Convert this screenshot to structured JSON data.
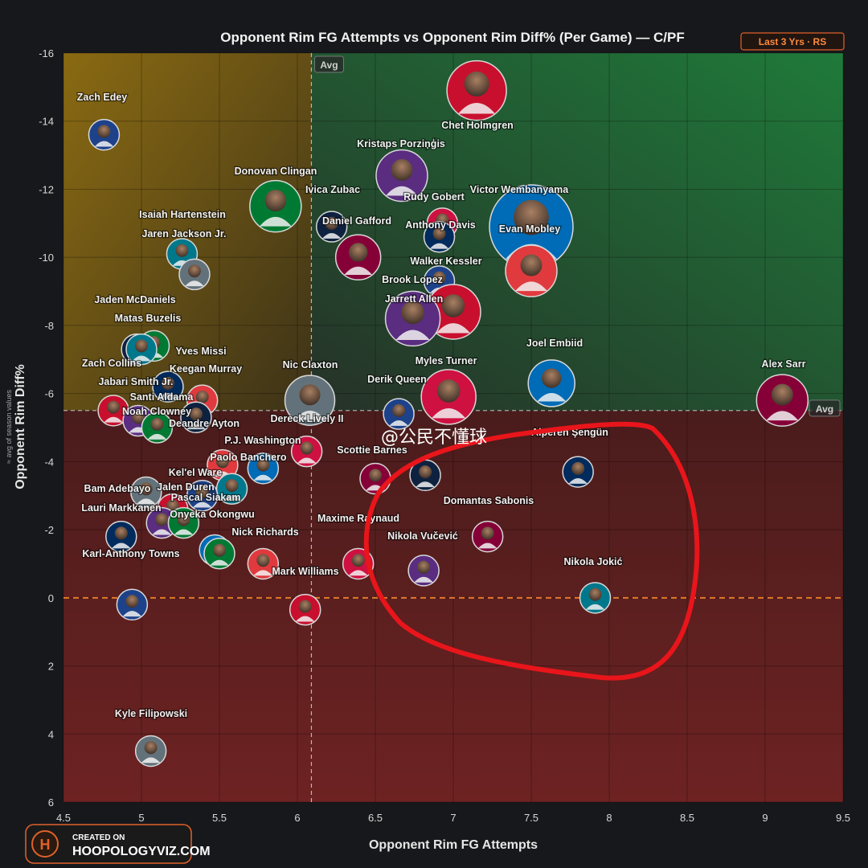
{
  "title": "Opponent Rim FG Attempts vs Opponent Rim Diff% (Per Game) — C/PF",
  "badge": "Last 3 Yrs · RS",
  "xlabel": "Opponent Rim FG Attempts",
  "ylabel": "Opponent Rim Diff%",
  "ylabel_sub": "≈ avg of season values",
  "avg_label": "Avg",
  "watermark": "@公民不懂球",
  "logo": {
    "line1": "CREATED ON",
    "line2": "HOOPOLOGYVIZ.COM",
    "mark": "H"
  },
  "colors": {
    "quad_top_left": "#8a6a12",
    "quad_top_right": "#1f7a3a",
    "quad_bottom": "#6e2222",
    "zero_line": "#e07a2a",
    "avg_line": "#b8b8b8",
    "circle_highlight": "#e8151b",
    "badge_border": "#e0622a"
  },
  "chart_data": {
    "type": "scatter",
    "xlim": [
      4.5,
      9.5
    ],
    "ylim": [
      6,
      -16
    ],
    "y_inverted": true,
    "x_ticks": [
      "4.5",
      "5",
      "5.5",
      "6",
      "6.5",
      "7",
      "7.5",
      "8",
      "8.5",
      "9",
      "9.5"
    ],
    "y_ticks": [
      "-16",
      "-14",
      "-12",
      "-10",
      "-8",
      "-6",
      "-4",
      "-2",
      "0",
      "2",
      "4",
      "6"
    ],
    "avg_x": 6.09,
    "avg_y": -5.5,
    "grid": true,
    "annotation": "red hand-drawn circle around Domantas Sabonis, Nikola Vučević, Nikola Jokić",
    "points": [
      {
        "name": "Zach Edey",
        "x": 4.76,
        "y": -13.6
      },
      {
        "name": "Chet Holmgren",
        "x": 7.15,
        "y": -14.9
      },
      {
        "name": "Kristaps Porziņģis",
        "x": 6.67,
        "y": -12.4
      },
      {
        "name": "Donovan Clingan",
        "x": 5.86,
        "y": -11.5
      },
      {
        "name": "Ivica Zubac",
        "x": 6.22,
        "y": -10.9
      },
      {
        "name": "Rudy Gobert",
        "x": 6.93,
        "y": -11.0
      },
      {
        "name": "Victor Wembanyama",
        "x": 7.5,
        "y": -10.9
      },
      {
        "name": "Daniel Gafford",
        "x": 6.39,
        "y": -10.0
      },
      {
        "name": "Anthony Davis",
        "x": 6.91,
        "y": -10.6
      },
      {
        "name": "Evan Mobley",
        "x": 7.5,
        "y": -9.6
      },
      {
        "name": "Isaiah Hartenstein",
        "x": 5.26,
        "y": -10.1
      },
      {
        "name": "Jaren Jackson Jr.",
        "x": 5.34,
        "y": -9.5
      },
      {
        "name": "Walker Kessler",
        "x": 6.91,
        "y": -9.3
      },
      {
        "name": "Brook Lopez",
        "x": 7.0,
        "y": -8.4
      },
      {
        "name": "Jarrett Allen",
        "x": 6.74,
        "y": -8.2
      },
      {
        "name": "Jaden McDaniels",
        "x": 5.08,
        "y": -7.4
      },
      {
        "name": "Matas Buzelis",
        "x": 4.97,
        "y": -7.3
      },
      {
        "name": "Myles Turner",
        "x": 6.97,
        "y": -5.9
      },
      {
        "name": "Joel Embiid",
        "x": 7.63,
        "y": -6.3
      },
      {
        "name": "Alex Sarr",
        "x": 9.11,
        "y": -5.8
      },
      {
        "name": "Zach Collins",
        "x": 5.17,
        "y": -6.2
      },
      {
        "name": "Keegan Murray",
        "x": 5.39,
        "y": -5.8
      },
      {
        "name": "Yves Missi",
        "x": 5.0,
        "y": -7.3
      },
      {
        "name": "Nic Claxton",
        "x": 6.08,
        "y": -5.8
      },
      {
        "name": "Derik Queen",
        "x": 6.65,
        "y": -5.4
      },
      {
        "name": "Jabari Smith Jr.",
        "x": 4.82,
        "y": -5.5
      },
      {
        "name": "Santi Aldama",
        "x": 4.98,
        "y": -5.2
      },
      {
        "name": "Noah Clowney",
        "x": 5.1,
        "y": -5.0
      },
      {
        "name": "Deandre Ayton",
        "x": 5.35,
        "y": -5.3
      },
      {
        "name": "Dereck Lively II",
        "x": 6.06,
        "y": -4.3
      },
      {
        "name": "P.J. Washington",
        "x": 5.78,
        "y": -3.8
      },
      {
        "name": "Scottie Barnes",
        "x": 6.5,
        "y": -3.5
      },
      {
        "name": "Alperen Şengün",
        "x": 7.8,
        "y": -3.7
      },
      {
        "name": "Paolo Banchero",
        "x": 5.52,
        "y": -3.9
      },
      {
        "name": "Kel'el Ware",
        "x": 5.58,
        "y": -3.2
      },
      {
        "name": "Bam Adebayo",
        "x": 5.03,
        "y": -3.1
      },
      {
        "name": "Jalen Duren",
        "x": 5.39,
        "y": -3.0
      },
      {
        "name": "Pascal Siakam",
        "x": 5.2,
        "y": -2.6
      },
      {
        "name": "Lauri Markkanen",
        "x": 5.13,
        "y": -2.2
      },
      {
        "name": "Onyeka Okongwu",
        "x": 5.27,
        "y": -2.2
      },
      {
        "name": "Domantas Sabonis",
        "x": 6.82,
        "y": -3.6
      },
      {
        "name": "Maxime Raynaud",
        "x": 6.39,
        "y": -1.0
      },
      {
        "name": "Nick Richards",
        "x": 5.47,
        "y": -1.4
      },
      {
        "name": "Nikola Vučević",
        "x": 7.22,
        "y": -1.8
      },
      {
        "name": "Karl-Anthony Towns",
        "x": 4.87,
        "y": -1.8
      },
      {
        "name": "Mark Williams",
        "x": 5.78,
        "y": -1.0
      },
      {
        "name": "Nikola Jokić",
        "x": 7.91,
        "y": 0.0
      },
      {
        "name": "Kyle Filipowski",
        "x": 5.06,
        "y": 4.5
      },
      {
        "name": "Unlabeled C 1",
        "x": 4.94,
        "y": 0.2
      },
      {
        "name": "Unlabeled C 2",
        "x": 6.05,
        "y": 0.35
      },
      {
        "name": "Unlabeled C 3",
        "x": 6.81,
        "y": -0.8
      },
      {
        "name": "Unlabeled C 4",
        "x": 5.5,
        "y": -1.3
      }
    ]
  }
}
